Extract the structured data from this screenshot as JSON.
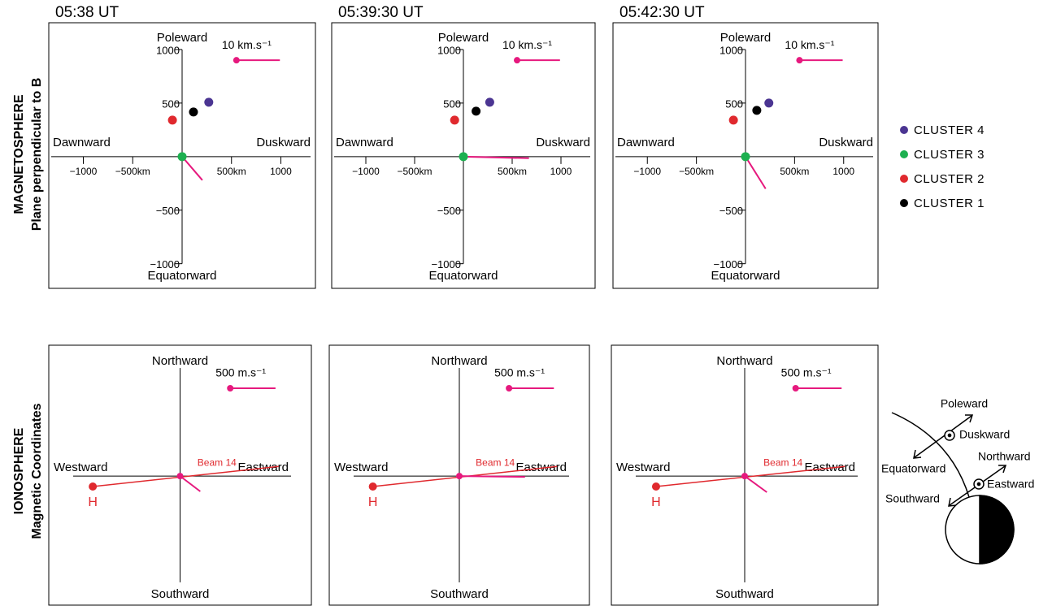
{
  "row_labels": [
    {
      "title": "MAGNETOSPHERE",
      "subtitle": "Plane perpendicular to B"
    },
    {
      "title": "IONOSPHERE",
      "subtitle": "Magnetic Coordinates"
    }
  ],
  "diagram": {
    "poleward": "Poleward",
    "duskward": "Duskward",
    "equatorward": "Equatorward",
    "northward": "Northward",
    "eastward": "Eastward",
    "southward": "Southward"
  },
  "chart_data": [
    {
      "type": "scatter",
      "title": "05:38 UT",
      "directions": {
        "top": "Poleward",
        "bottom": "Equatorward",
        "left": "Dawnward",
        "right": "Duskward"
      },
      "xlim": [
        -1350,
        1350
      ],
      "ylim": [
        -1230,
        1250
      ],
      "xticks": [
        {
          "value": -1000,
          "label": "−1000"
        },
        {
          "value": -500,
          "label": "−500km"
        },
        {
          "value": 500,
          "label": "500km"
        },
        1000
      ],
      "yticks": [
        1000,
        500,
        {
          "value": -500,
          "label": "−500"
        },
        {
          "value": -1000,
          "label": "−1000"
        }
      ],
      "series": [
        {
          "name": "CLUSTER 4",
          "color": "#4b3592",
          "x": [
            270
          ],
          "values": [
            508
          ]
        },
        {
          "name": "CLUSTER 3",
          "color": "#1db050",
          "x": [
            0
          ],
          "values": [
            0
          ]
        },
        {
          "name": "CLUSTER 2",
          "color": "#e0292e",
          "x": [
            -98
          ],
          "values": [
            341
          ]
        },
        {
          "name": "CLUSTER 1",
          "color": "#000000",
          "x": [
            115
          ],
          "values": [
            417
          ]
        }
      ],
      "vector": {
        "color": "#e6197e",
        "x": [
          0,
          205
        ],
        "values": [
          0,
          -220
        ]
      },
      "scale_bar": {
        "label": "10 km.s⁻¹",
        "color": "#e6197e",
        "x": [
          550,
          990
        ],
        "values": [
          900,
          900
        ]
      }
    },
    {
      "type": "scatter",
      "title": "05:39:30 UT",
      "directions": {
        "top": "Poleward",
        "bottom": "Equatorward",
        "left": "Dawnward",
        "right": "Duskward"
      },
      "xlim": [
        -1350,
        1350
      ],
      "ylim": [
        -1230,
        1250
      ],
      "xticks": [
        {
          "value": -1000,
          "label": "−1000"
        },
        {
          "value": -500,
          "label": "−500km"
        },
        {
          "value": 500,
          "label": "500km"
        },
        1000
      ],
      "yticks": [
        1000,
        500,
        {
          "value": -500,
          "label": "−500"
        },
        {
          "value": -1000,
          "label": "−1000"
        }
      ],
      "series": [
        {
          "name": "CLUSTER 4",
          "color": "#4b3592",
          "x": [
            270
          ],
          "values": [
            508
          ]
        },
        {
          "name": "CLUSTER 3",
          "color": "#1db050",
          "x": [
            0
          ],
          "values": [
            0
          ]
        },
        {
          "name": "CLUSTER 2",
          "color": "#e0292e",
          "x": [
            -90
          ],
          "values": [
            341
          ]
        },
        {
          "name": "CLUSTER 1",
          "color": "#000000",
          "x": [
            130
          ],
          "values": [
            424
          ]
        }
      ],
      "vector": {
        "color": "#e6197e",
        "x": [
          0,
          672
        ],
        "values": [
          0,
          -15
        ]
      },
      "scale_bar": {
        "label": "10 km.s⁻¹",
        "color": "#e6197e",
        "x": [
          550,
          990
        ],
        "values": [
          900,
          900
        ]
      }
    },
    {
      "type": "scatter",
      "title": "05:42:30 UT",
      "directions": {
        "top": "Poleward",
        "bottom": "Equatorward",
        "left": "Dawnward",
        "right": "Duskward"
      },
      "xlim": [
        -1350,
        1350
      ],
      "ylim": [
        -1230,
        1250
      ],
      "xticks": [
        {
          "value": -1000,
          "label": "−1000"
        },
        {
          "value": -500,
          "label": "−500km"
        },
        {
          "value": 500,
          "label": "500km"
        },
        1000
      ],
      "yticks": [
        1000,
        500,
        {
          "value": -500,
          "label": "−500"
        },
        {
          "value": -1000,
          "label": "−1000"
        }
      ],
      "series": [
        {
          "name": "CLUSTER 4",
          "color": "#4b3592",
          "x": [
            238
          ],
          "values": [
            500
          ]
        },
        {
          "name": "CLUSTER 3",
          "color": "#1db050",
          "x": [
            0
          ],
          "values": [
            0
          ]
        },
        {
          "name": "CLUSTER 2",
          "color": "#e0292e",
          "x": [
            -123
          ],
          "values": [
            341
          ]
        },
        {
          "name": "CLUSTER 1",
          "color": "#000000",
          "x": [
            115
          ],
          "values": [
            432
          ]
        }
      ],
      "vector": {
        "color": "#e6197e",
        "x": [
          0,
          205
        ],
        "values": [
          0,
          -300
        ]
      },
      "scale_bar": {
        "label": "10 km.s⁻¹",
        "color": "#e6197e",
        "x": [
          550,
          990
        ],
        "values": [
          900,
          900
        ]
      }
    },
    {
      "type": "vector",
      "directions": {
        "top": "Northward",
        "bottom": "Southward",
        "left": "Westward",
        "right": "Eastward"
      },
      "xlim": [
        -1450,
        1450
      ],
      "ylim": [
        -1430,
        1450
      ],
      "beam": {
        "label": "Beam 14",
        "color": "#e0292e",
        "x": [
          -964,
          1089
        ],
        "values": [
          -116,
          107
        ]
      },
      "radar": {
        "label": "H",
        "color": "#e0292e",
        "x": [
          -964
        ],
        "values": [
          -116
        ]
      },
      "vector": {
        "color": "#e6197e",
        "x": [
          0,
          223
        ],
        "values": [
          0,
          -170
        ]
      },
      "scale_bar": {
        "label": "500 m.s⁻¹",
        "color": "#e6197e",
        "x": [
          554,
          1054
        ],
        "values": [
          973,
          973
        ]
      }
    },
    {
      "type": "vector",
      "directions": {
        "top": "Northward",
        "bottom": "Southward",
        "left": "Westward",
        "right": "Eastward"
      },
      "xlim": [
        -1450,
        1450
      ],
      "ylim": [
        -1430,
        1450
      ],
      "beam": {
        "label": "Beam 14",
        "color": "#e0292e",
        "x": [
          -964,
          1089
        ],
        "values": [
          -116,
          107
        ]
      },
      "radar": {
        "label": "H",
        "color": "#e0292e",
        "x": [
          -964
        ],
        "values": [
          -116
        ]
      },
      "vector": {
        "color": "#e6197e",
        "x": [
          0,
          732
        ],
        "values": [
          0,
          -9
        ]
      },
      "scale_bar": {
        "label": "500 m.s⁻¹",
        "color": "#e6197e",
        "x": [
          554,
          1054
        ],
        "values": [
          973,
          973
        ]
      }
    },
    {
      "type": "vector",
      "directions": {
        "top": "Northward",
        "bottom": "Southward",
        "left": "Westward",
        "right": "Eastward"
      },
      "xlim": [
        -1450,
        1450
      ],
      "ylim": [
        -1430,
        1450
      ],
      "beam": {
        "label": "Beam 14",
        "color": "#e0292e",
        "x": [
          -964,
          1089
        ],
        "values": [
          -116,
          107
        ]
      },
      "radar": {
        "label": "H",
        "color": "#e0292e",
        "x": [
          -964
        ],
        "values": [
          -116
        ]
      },
      "vector": {
        "color": "#e6197e",
        "x": [
          0,
          241
        ],
        "values": [
          0,
          -179
        ]
      },
      "scale_bar": {
        "label": "500 m.s⁻¹",
        "color": "#e6197e",
        "x": [
          554,
          1054
        ],
        "values": [
          973,
          973
        ]
      }
    }
  ]
}
